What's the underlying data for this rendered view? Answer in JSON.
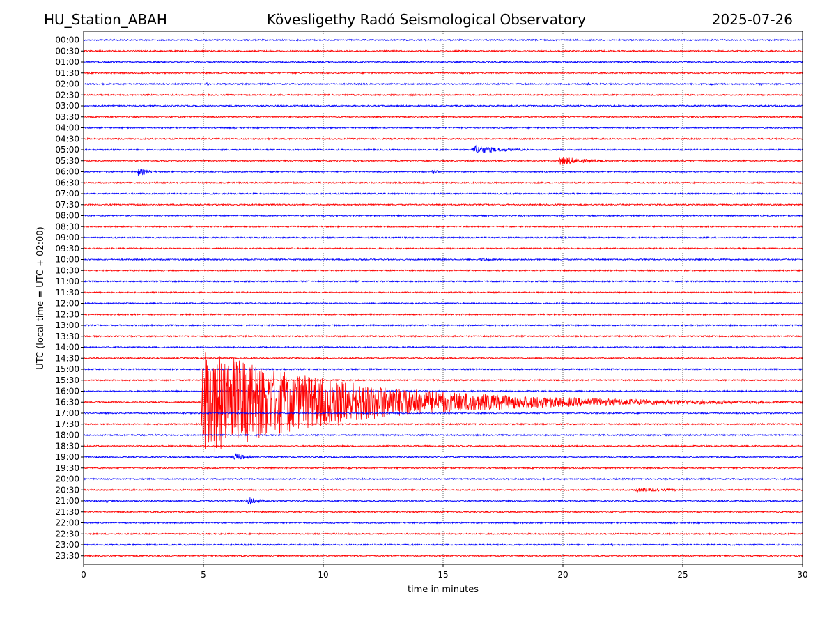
{
  "header": {
    "station": "HU_Station_ABAH",
    "observatory": "Kövesligethy Radó Seismological Observatory",
    "date": "2025-07-26"
  },
  "chart_data": {
    "type": "line",
    "subtype": "helicorder",
    "xlabel": "time in minutes",
    "ylabel": "UTC (local time = UTC + 02:00)",
    "xlim": [
      0,
      30
    ],
    "x_ticks": [
      0,
      5,
      10,
      15,
      20,
      25,
      30
    ],
    "x_tick_labels": [
      "0",
      "5",
      "10",
      "15",
      "20",
      "25",
      "30"
    ],
    "vertical_grid_at": [
      5,
      10,
      15,
      20,
      25
    ],
    "trace_colors": [
      "#0000ff",
      "#ff0000"
    ],
    "rows": [
      "00:00",
      "00:30",
      "01:00",
      "01:30",
      "02:00",
      "02:30",
      "03:00",
      "03:30",
      "04:00",
      "04:30",
      "05:00",
      "05:30",
      "06:00",
      "06:30",
      "07:00",
      "07:30",
      "08:00",
      "08:30",
      "09:00",
      "09:30",
      "10:00",
      "10:30",
      "11:00",
      "11:30",
      "12:00",
      "12:30",
      "13:00",
      "13:30",
      "14:00",
      "14:30",
      "15:00",
      "15:30",
      "16:00",
      "16:30",
      "17:00",
      "17:30",
      "18:00",
      "18:30",
      "19:00",
      "19:30",
      "20:00",
      "20:30",
      "21:00",
      "21:30",
      "22:00",
      "22:30",
      "23:00",
      "23:30"
    ],
    "events": [
      {
        "row": "02:00",
        "minute": 5.1,
        "duration": 0.4,
        "amplitude": 0.25
      },
      {
        "row": "02:00",
        "minute": 21.0,
        "duration": 0.5,
        "amplitude": 0.2
      },
      {
        "row": "02:00",
        "minute": 26.1,
        "duration": 0.5,
        "amplitude": 0.28
      },
      {
        "row": "02:00",
        "minute": 28.2,
        "duration": 0.4,
        "amplitude": 0.2
      },
      {
        "row": "02:30",
        "minute": 13.6,
        "duration": 0.5,
        "amplitude": 0.2
      },
      {
        "row": "04:00",
        "minute": 27.4,
        "duration": 0.4,
        "amplitude": 0.2
      },
      {
        "row": "05:00",
        "minute": 16.2,
        "duration": 4.0,
        "amplitude": 0.45
      },
      {
        "row": "05:30",
        "minute": 19.8,
        "duration": 3.5,
        "amplitude": 0.45
      },
      {
        "row": "06:00",
        "minute": 2.2,
        "duration": 1.5,
        "amplitude": 0.45
      },
      {
        "row": "06:00",
        "minute": 14.5,
        "duration": 0.7,
        "amplitude": 0.4
      },
      {
        "row": "10:00",
        "minute": 16.5,
        "duration": 2.0,
        "amplitude": 0.2
      },
      {
        "row": "12:00",
        "minute": 18.6,
        "duration": 0.5,
        "amplitude": 0.2
      },
      {
        "row": "16:30",
        "minute": 4.9,
        "duration": 20.0,
        "amplitude": 5.0
      },
      {
        "row": "19:00",
        "minute": 6.2,
        "duration": 1.8,
        "amplitude": 0.45
      },
      {
        "row": "20:30",
        "minute": 23.0,
        "duration": 7.0,
        "amplitude": 0.18
      },
      {
        "row": "21:00",
        "minute": 0.9,
        "duration": 0.4,
        "amplitude": 0.35
      },
      {
        "row": "21:00",
        "minute": 6.8,
        "duration": 1.5,
        "amplitude": 0.45
      },
      {
        "row": "21:00",
        "minute": 19.9,
        "duration": 0.3,
        "amplitude": 0.3
      },
      {
        "row": "23:00",
        "minute": 22.0,
        "duration": 0.4,
        "amplitude": 0.2
      }
    ]
  }
}
